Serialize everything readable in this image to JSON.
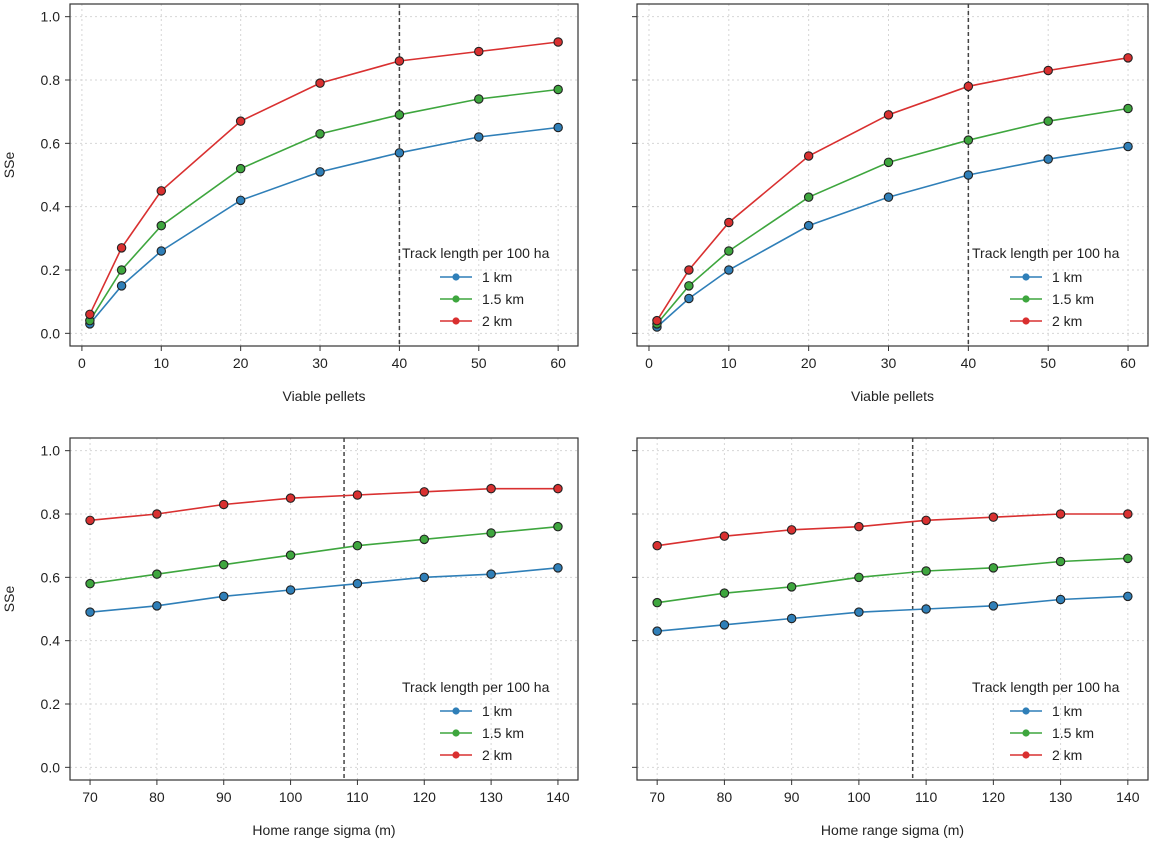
{
  "colors": {
    "km1": "#2f7fb8",
    "km1_5": "#3ea63e",
    "km2": "#d93030",
    "grid": "#d6d6d6",
    "frame": "#333333",
    "vline": "#444444"
  },
  "chart_data": [
    {
      "type": "line",
      "id": "top-left",
      "xlabel": "Viable pellets",
      "ylabel": "SSe",
      "x": [
        1,
        5,
        10,
        20,
        30,
        40,
        50,
        60
      ],
      "xlim": [
        -1.5,
        62.5
      ],
      "ylim": [
        -0.04,
        1.04
      ],
      "xticks": [
        0,
        10,
        20,
        30,
        40,
        50,
        60
      ],
      "yticks": [
        0.0,
        0.2,
        0.4,
        0.6,
        0.8,
        1.0
      ],
      "ytick_labels": [
        "0.0",
        "0.2",
        "0.4",
        "0.6",
        "0.8",
        "1.0"
      ],
      "show_yticklabels": true,
      "vline": 40,
      "legend_title": "Track length per 100 ha",
      "series": [
        {
          "name": "1 km",
          "color_key": "km1",
          "values": [
            0.03,
            0.15,
            0.26,
            0.42,
            0.51,
            0.57,
            0.62,
            0.65
          ]
        },
        {
          "name": "1.5 km",
          "color_key": "km1_5",
          "values": [
            0.04,
            0.2,
            0.34,
            0.52,
            0.63,
            0.69,
            0.74,
            0.77
          ]
        },
        {
          "name": "2 km",
          "color_key": "km2",
          "values": [
            0.06,
            0.27,
            0.45,
            0.67,
            0.79,
            0.86,
            0.89,
            0.92
          ]
        }
      ]
    },
    {
      "type": "line",
      "id": "top-right",
      "xlabel": "Viable pellets",
      "ylabel": "",
      "x": [
        1,
        5,
        10,
        20,
        30,
        40,
        50,
        60
      ],
      "xlim": [
        -1.5,
        62.5
      ],
      "ylim": [
        -0.04,
        1.04
      ],
      "xticks": [
        0,
        10,
        20,
        30,
        40,
        50,
        60
      ],
      "yticks": [
        0.0,
        0.2,
        0.4,
        0.6,
        0.8,
        1.0
      ],
      "ytick_labels": [
        "0.0",
        "0.2",
        "0.4",
        "0.6",
        "0.8",
        "1.0"
      ],
      "show_yticklabels": false,
      "vline": 40,
      "legend_title": "Track length per 100 ha",
      "series": [
        {
          "name": "1 km",
          "color_key": "km1",
          "values": [
            0.02,
            0.11,
            0.2,
            0.34,
            0.43,
            0.5,
            0.55,
            0.59
          ]
        },
        {
          "name": "1.5 km",
          "color_key": "km1_5",
          "values": [
            0.03,
            0.15,
            0.26,
            0.43,
            0.54,
            0.61,
            0.67,
            0.71
          ]
        },
        {
          "name": "2 km",
          "color_key": "km2",
          "values": [
            0.04,
            0.2,
            0.35,
            0.56,
            0.69,
            0.78,
            0.83,
            0.87
          ]
        }
      ]
    },
    {
      "type": "line",
      "id": "bottom-left",
      "xlabel": "Home range sigma (m)",
      "ylabel": "SSe",
      "x": [
        70,
        80,
        90,
        100,
        110,
        120,
        130,
        140
      ],
      "xlim": [
        67,
        143
      ],
      "ylim": [
        -0.04,
        1.04
      ],
      "xticks": [
        70,
        80,
        90,
        100,
        110,
        120,
        130,
        140
      ],
      "yticks": [
        0.0,
        0.2,
        0.4,
        0.6,
        0.8,
        1.0
      ],
      "ytick_labels": [
        "0.0",
        "0.2",
        "0.4",
        "0.6",
        "0.8",
        "1.0"
      ],
      "show_yticklabels": true,
      "vline": 108,
      "legend_title": "Track length per 100 ha",
      "series": [
        {
          "name": "1 km",
          "color_key": "km1",
          "values": [
            0.49,
            0.51,
            0.54,
            0.56,
            0.58,
            0.6,
            0.61,
            0.63
          ]
        },
        {
          "name": "1.5 km",
          "color_key": "km1_5",
          "values": [
            0.58,
            0.61,
            0.64,
            0.67,
            0.7,
            0.72,
            0.74,
            0.76
          ]
        },
        {
          "name": "2 km",
          "color_key": "km2",
          "values": [
            0.78,
            0.8,
            0.83,
            0.85,
            0.86,
            0.87,
            0.88,
            0.88
          ]
        }
      ]
    },
    {
      "type": "line",
      "id": "bottom-right",
      "xlabel": "Home range sigma (m)",
      "ylabel": "",
      "x": [
        70,
        80,
        90,
        100,
        110,
        120,
        130,
        140
      ],
      "xlim": [
        67,
        143
      ],
      "ylim": [
        -0.04,
        1.04
      ],
      "xticks": [
        70,
        80,
        90,
        100,
        110,
        120,
        130,
        140
      ],
      "yticks": [
        0.0,
        0.2,
        0.4,
        0.6,
        0.8,
        1.0
      ],
      "ytick_labels": [
        "0.0",
        "0.2",
        "0.4",
        "0.6",
        "0.8",
        "1.0"
      ],
      "show_yticklabels": false,
      "vline": 108,
      "legend_title": "Track length per 100 ha",
      "series": [
        {
          "name": "1 km",
          "color_key": "km1",
          "values": [
            0.43,
            0.45,
            0.47,
            0.49,
            0.5,
            0.51,
            0.53,
            0.54
          ]
        },
        {
          "name": "1.5 km",
          "color_key": "km1_5",
          "values": [
            0.52,
            0.55,
            0.57,
            0.6,
            0.62,
            0.63,
            0.65,
            0.66
          ]
        },
        {
          "name": "2 km",
          "color_key": "km2",
          "values": [
            0.7,
            0.73,
            0.75,
            0.76,
            0.78,
            0.79,
            0.8,
            0.8
          ]
        }
      ]
    }
  ]
}
